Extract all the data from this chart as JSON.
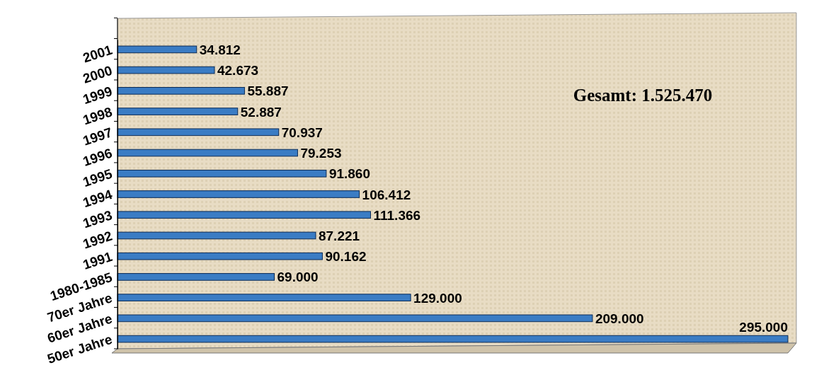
{
  "chart_data": {
    "type": "bar",
    "orientation": "horizontal",
    "categories": [
      "2001",
      "2000",
      "1999",
      "1998",
      "1997",
      "1996",
      "1995",
      "1994",
      "1993",
      "1992",
      "1991",
      "1980-1985",
      "70er Jahre",
      "60er Jahre",
      "50er Jahre"
    ],
    "values": [
      34812,
      42673,
      55887,
      52887,
      70937,
      79253,
      91860,
      106412,
      111366,
      87221,
      90162,
      69000,
      129000,
      209000,
      295000
    ],
    "value_labels": [
      "34.812",
      "42.673",
      "55.887",
      "52.887",
      "70.937",
      "79.253",
      "91.860",
      "106.412",
      "111.366",
      "87.221",
      "90.162",
      "69.000",
      "129.000",
      "209.000",
      "295.000"
    ],
    "color": "#3a7cc4",
    "annotations": [
      "Gesamt: 1.525.470"
    ]
  }
}
